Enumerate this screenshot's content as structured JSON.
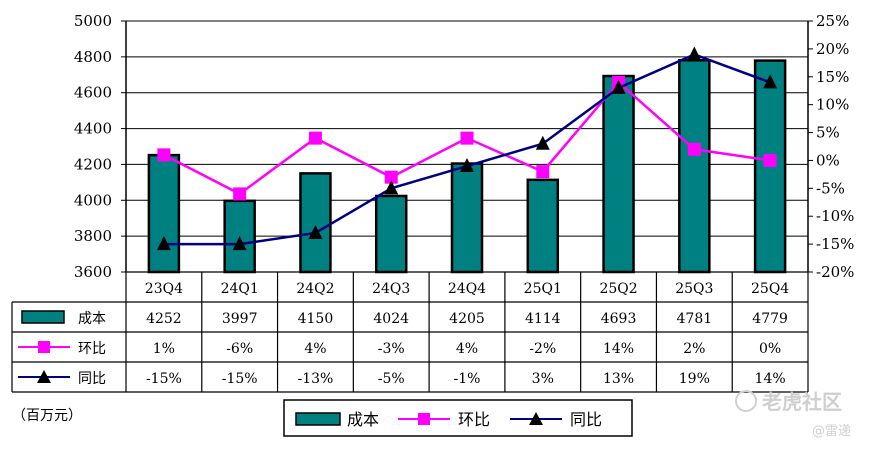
{
  "chart_data": {
    "type": "bar+line",
    "categories": [
      "23Q4",
      "24Q1",
      "24Q2",
      "24Q3",
      "24Q4",
      "25Q1",
      "25Q2",
      "25Q3",
      "25Q4"
    ],
    "series": [
      {
        "name": "成本",
        "kind": "bar",
        "axis": "left",
        "color": "#008080",
        "values": [
          4252,
          3997,
          4150,
          4024,
          4205,
          4114,
          4693,
          4781,
          4779
        ],
        "labels": [
          "4252",
          "3997",
          "4150",
          "4024",
          "4205",
          "4114",
          "4693",
          "4781",
          "4779"
        ]
      },
      {
        "name": "环比",
        "kind": "line",
        "marker": "square",
        "axis": "right",
        "color": "#ff00ff",
        "values": [
          1,
          -6,
          4,
          -3,
          4,
          -2,
          14,
          2,
          0
        ],
        "labels": [
          "1%",
          "-6%",
          "4%",
          "-3%",
          "4%",
          "-2%",
          "14%",
          "2%",
          "0%"
        ]
      },
      {
        "name": "同比",
        "kind": "line",
        "marker": "triangle",
        "axis": "right",
        "color": "#000080",
        "values": [
          -15,
          -15,
          -13,
          -5,
          -1,
          3,
          13,
          19,
          14
        ],
        "labels": [
          "-15%",
          "-15%",
          "-13%",
          "-5%",
          "-1%",
          "3%",
          "13%",
          "19%",
          "14%"
        ]
      }
    ],
    "left_axis": {
      "min": 3600,
      "max": 5000,
      "step": 200,
      "tick_labels": [
        "3600",
        "3800",
        "4000",
        "4200",
        "4400",
        "4600",
        "4800",
        "5000"
      ]
    },
    "right_axis": {
      "min": -20,
      "max": 25,
      "step": 5,
      "tick_labels": [
        "-20%",
        "-15%",
        "-10%",
        "-5%",
        "0%",
        "5%",
        "10%",
        "15%",
        "20%",
        "25%"
      ]
    },
    "gridlines": true,
    "data_table": true,
    "unit_label": "（百万元）",
    "legend": {
      "position": "bottom-center",
      "entries": [
        "成本",
        "环比",
        "同比"
      ]
    }
  },
  "watermark": {
    "brand": "老虎社区",
    "author": "@雷递"
  }
}
